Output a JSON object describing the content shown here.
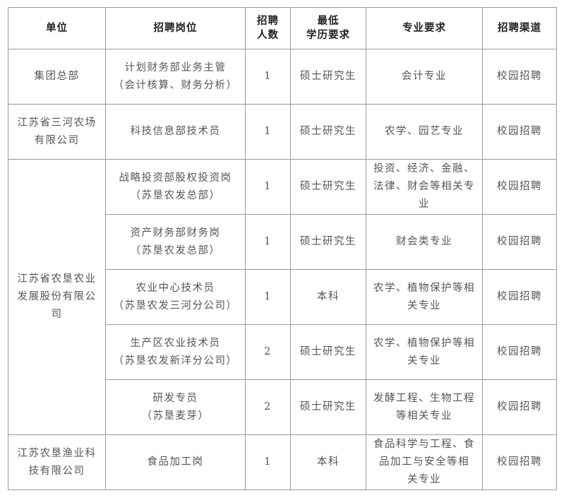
{
  "table": {
    "headers": [
      [
        "单位"
      ],
      [
        "招聘岗位"
      ],
      [
        "招聘",
        "人数"
      ],
      [
        "最低",
        "学历要求"
      ],
      [
        "专业要求"
      ],
      [
        "招聘渠道"
      ]
    ],
    "groups": [
      {
        "unit": [
          "集团总部"
        ],
        "rows": [
          {
            "position": [
              "计划财务部业务主管",
              "（会计核算、财务分析）"
            ],
            "count": "1",
            "education": [
              "硕士研究生"
            ],
            "major": [
              "会计专业"
            ],
            "channel": [
              "校园招聘"
            ]
          }
        ]
      },
      {
        "unit": [
          "江苏省三河农场",
          "有限公司"
        ],
        "rows": [
          {
            "position": [
              "科技信息部技术员"
            ],
            "count": "1",
            "education": [
              "硕士研究生"
            ],
            "major": [
              "农学、园艺专业"
            ],
            "channel": [
              "校园招聘"
            ]
          }
        ]
      },
      {
        "unit": [
          "江苏省农垦农业",
          "发展股份有限公",
          "司"
        ],
        "rows": [
          {
            "position": [
              "战略投资部股权投资岗",
              "（苏垦农发总部）"
            ],
            "count": "1",
            "education": [
              "硕士研究生"
            ],
            "major": [
              "投资、经济、金融、",
              "法律、财会等相关专",
              "业"
            ],
            "channel": [
              "校园招聘"
            ]
          },
          {
            "position": [
              "资产财务部财务岗",
              "（苏垦农发总部）"
            ],
            "count": "1",
            "education": [
              "硕士研究生"
            ],
            "major": [
              "财会类专业"
            ],
            "channel": [
              "校园招聘"
            ]
          },
          {
            "position": [
              "农业中心技术员",
              "（苏垦农发三河分公司）"
            ],
            "count": "1",
            "education": [
              "本科"
            ],
            "major": [
              "农学、植物保护等相",
              "关专业"
            ],
            "channel": [
              "校园招聘"
            ]
          },
          {
            "position": [
              "生产区农业技术员",
              "（苏垦农发新洋分公司）"
            ],
            "count": "2",
            "education": [
              "硕士研究生"
            ],
            "major": [
              "农学、植物保护等相",
              "关专业"
            ],
            "channel": [
              "校园招聘"
            ]
          },
          {
            "position": [
              "研发专员",
              "（苏垦麦芽）"
            ],
            "count": "2",
            "education": [
              "硕士研究生"
            ],
            "major": [
              "发酵工程、生物工程",
              "等相关专业"
            ],
            "channel": [
              "校园招聘"
            ]
          }
        ]
      },
      {
        "unit": [
          "江苏农垦渔业科",
          "技有限公司"
        ],
        "rows": [
          {
            "position": [
              "食品加工岗"
            ],
            "count": "1",
            "education": [
              "本科"
            ],
            "major": [
              "食品科学与工程、食",
              "品加工与安全等相",
              "关专业"
            ],
            "channel": [
              "校园招聘"
            ]
          }
        ]
      }
    ]
  }
}
